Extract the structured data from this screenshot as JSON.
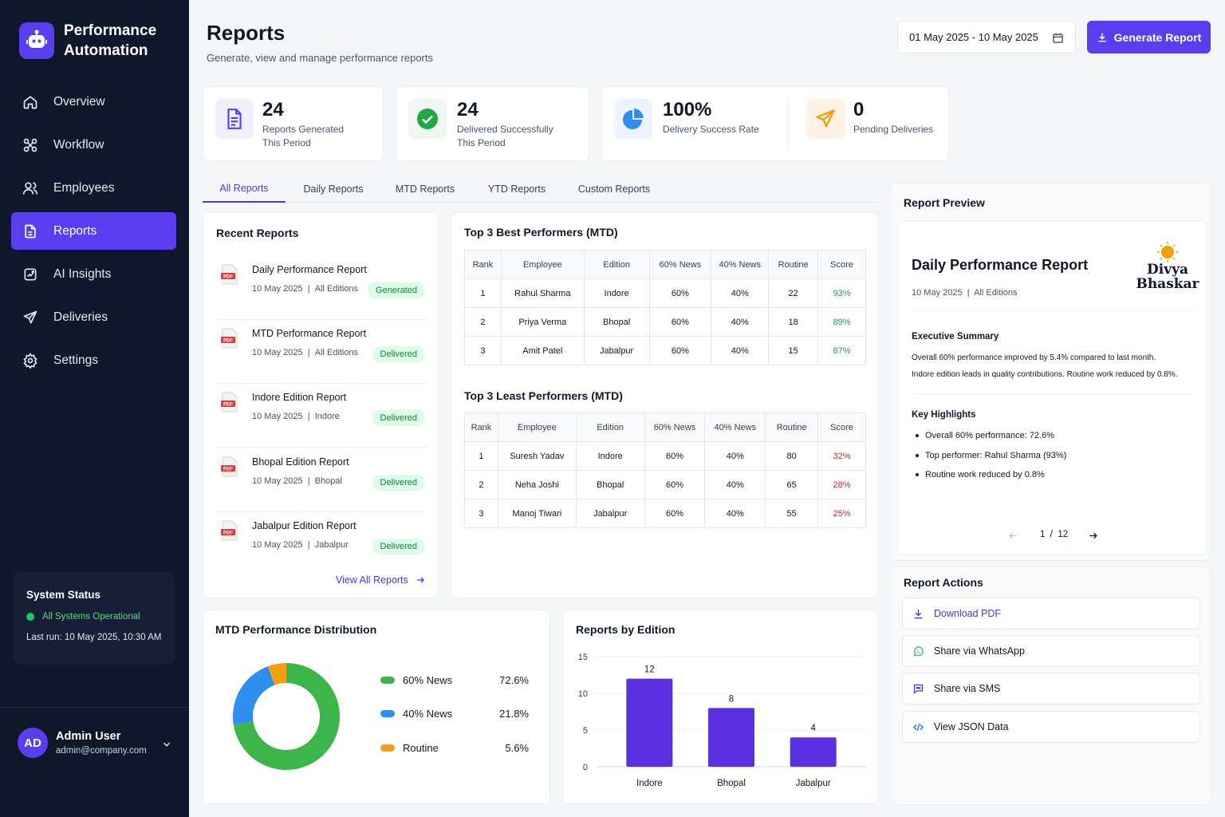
{
  "app": {
    "name_line1": "Performance",
    "name_line2": "Automation"
  },
  "nav": [
    {
      "label": "Overview",
      "icon": "home-icon"
    },
    {
      "label": "Workflow",
      "icon": "workflow-icon"
    },
    {
      "label": "Employees",
      "icon": "users-icon"
    },
    {
      "label": "Reports",
      "icon": "document-icon",
      "active": true
    },
    {
      "label": "AI Insights",
      "icon": "ai-icon"
    },
    {
      "label": "Deliveries",
      "icon": "send-icon"
    },
    {
      "label": "Settings",
      "icon": "gear-icon"
    }
  ],
  "system_status": {
    "title": "System Status",
    "state": "All Systems Operational",
    "last_run": "Last run: 10 May 2025, 10:30 AM"
  },
  "user": {
    "initials": "AD",
    "name": "Admin User",
    "email": "admin@company.com"
  },
  "header": {
    "title": "Reports",
    "subtitle": "Generate, view and manage performance reports",
    "date_range": "01 May 2025 - 10 May 2025",
    "generate_label": "Generate Report"
  },
  "stats": [
    {
      "value": "24",
      "label1": "Reports Generated",
      "label2": "This Period"
    },
    {
      "value": "24",
      "label1": "Delivered Successfully",
      "label2": "This Period"
    },
    {
      "value": "100%",
      "label1": "Delivery Success Rate",
      "label2": ""
    },
    {
      "value": "0",
      "label1": "Pending Deliveries",
      "label2": ""
    }
  ],
  "tabs": [
    "All Reports",
    "Daily Reports",
    "MTD Reports",
    "YTD Reports",
    "Custom Reports"
  ],
  "recent": {
    "title": "Recent Reports",
    "items": [
      {
        "name": "Daily Performance Report",
        "date": "10 May 2025",
        "scope": "All Editions",
        "status": "Generated"
      },
      {
        "name": "MTD Performance Report",
        "date": "10 May 2025",
        "scope": "All Editions",
        "status": "Delivered"
      },
      {
        "name": "Indore Edition Report",
        "date": "10 May 2025",
        "scope": "Indore",
        "status": "Delivered"
      },
      {
        "name": "Bhopal Edition Report",
        "date": "10 May 2025",
        "scope": "Bhopal",
        "status": "Delivered"
      },
      {
        "name": "Jabalpur Edition Report",
        "date": "10 May 2025",
        "scope": "Jabalpur",
        "status": "Delivered"
      }
    ],
    "view_all": "View All Reports"
  },
  "best": {
    "title": "Top 3 Best Performers (MTD)",
    "headers": [
      "Rank",
      "Employee",
      "Edition",
      "60% News",
      "40% News",
      "Routine",
      "Score"
    ],
    "rows": [
      [
        "1",
        "Rahul Sharma",
        "Indore",
        "60%",
        "40%",
        "22",
        "93%"
      ],
      [
        "2",
        "Priya Verma",
        "Bhopal",
        "60%",
        "40%",
        "18",
        "89%"
      ],
      [
        "3",
        "Amit Patel",
        "Jabalpur",
        "60%",
        "40%",
        "15",
        "87%"
      ]
    ]
  },
  "least": {
    "title": "Top 3 Least Performers (MTD)",
    "headers": [
      "Rank",
      "Employee",
      "Edition",
      "60% News",
      "40% News",
      "Routine",
      "Score"
    ],
    "rows": [
      [
        "1",
        "Suresh Yadav",
        "Indore",
        "60%",
        "40%",
        "80",
        "32%"
      ],
      [
        "2",
        "Neha Joshi",
        "Bhopal",
        "60%",
        "40%",
        "65",
        "28%"
      ],
      [
        "3",
        "Manoj Tiwari",
        "Jabalpur",
        "60%",
        "40%",
        "55",
        "25%"
      ]
    ]
  },
  "preview": {
    "title": "Report Preview",
    "doc_title": "Daily Performance Report",
    "doc_meta": "10 May 2025  |  All Editions",
    "brand_line1": "Divya",
    "brand_line2": "Bhaskar",
    "exec_title": "Executive Summary",
    "exec_line1": "Overall 60% performance improved by 5.4% compared to last month.",
    "exec_line2": "Indore edition leads in quality contributions. Routine work reduced by 0.8%.",
    "highlights_title": "Key Highlights",
    "highlights": [
      "Overall 60% performance: 72.6%",
      "Top performer: Rahul Sharma (93%)",
      "Routine work reduced by 0.8%"
    ],
    "page_current": "1",
    "page_sep": "/",
    "page_total": "12"
  },
  "actions": {
    "title": "Report Actions",
    "items": [
      {
        "label": "Download PDF",
        "icon": "download-icon"
      },
      {
        "label": "Share via WhatsApp",
        "icon": "whatsapp-icon"
      },
      {
        "label": "Share via SMS",
        "icon": "sms-icon"
      },
      {
        "label": "View JSON Data",
        "icon": "code-icon"
      }
    ]
  },
  "colors": {
    "accent": "#5b3df0",
    "green": "#3cb54a",
    "blue": "#2f8ff0",
    "orange": "#f59e0b"
  },
  "chart_data": [
    {
      "type": "pie",
      "title": "MTD Performance Distribution",
      "categories": [
        "60% News",
        "40% News",
        "Routine"
      ],
      "values": [
        72.6,
        21.8,
        5.6
      ],
      "value_labels": [
        "72.6%",
        "21.8%",
        "5.6%"
      ],
      "colors": [
        "#3cb54a",
        "#2f8ff0",
        "#f59e0b"
      ],
      "legend": "right"
    },
    {
      "type": "bar",
      "title": "Reports by Edition",
      "categories": [
        "Indore",
        "Bhopal",
        "Jabalpur"
      ],
      "values": [
        12,
        8,
        4
      ],
      "ylim": [
        0,
        15
      ],
      "yticks": [
        0,
        5,
        10,
        15
      ],
      "color": "#5b30e0",
      "grid": true
    }
  ]
}
